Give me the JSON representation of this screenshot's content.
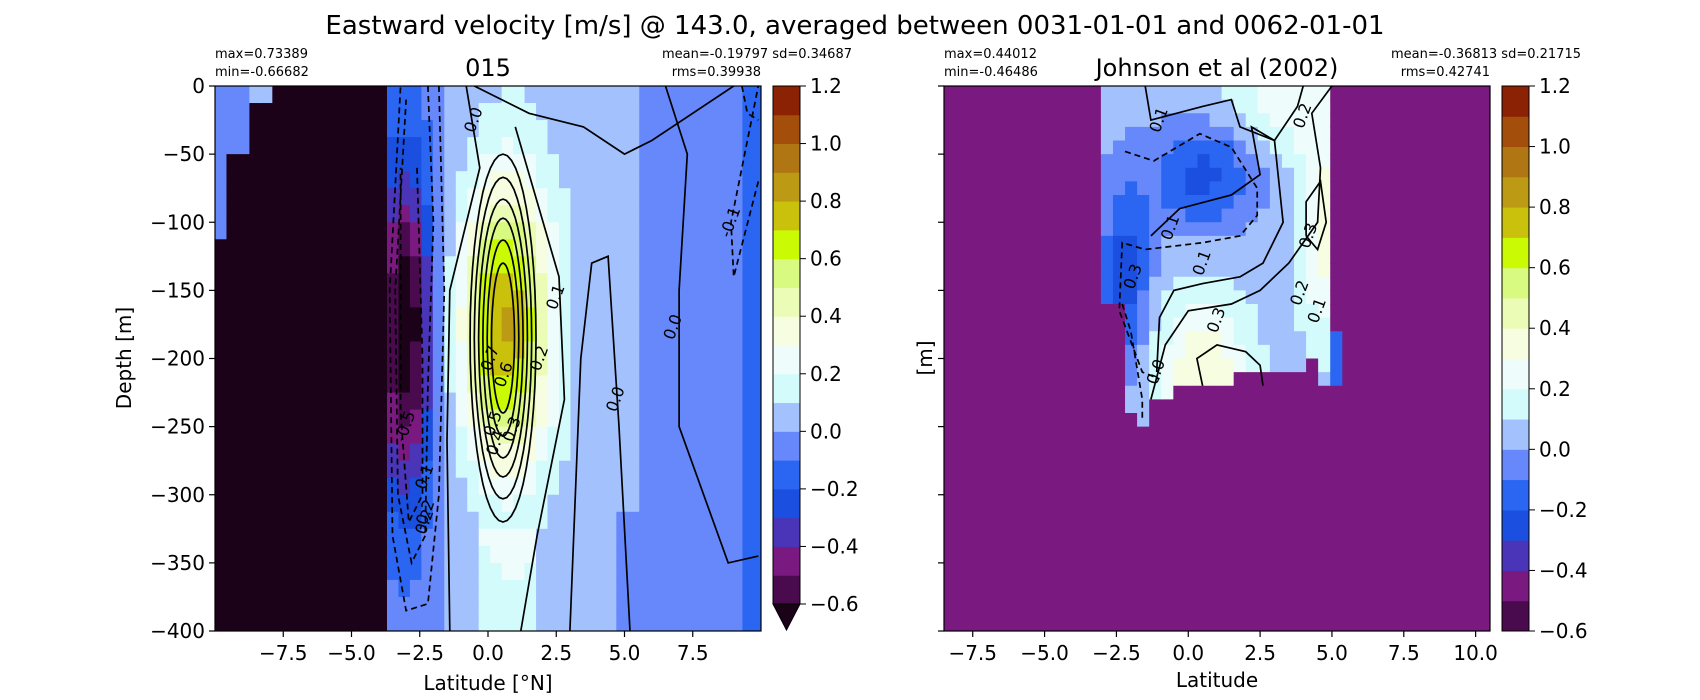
{
  "figure": {
    "suptitle": "Eastward velocity [m/s] @ 143.0, averaged between 0031-01-01 and 0062-01-01"
  },
  "colorbar": {
    "ticks": [
      "1.2",
      "1.0",
      "0.8",
      "0.6",
      "0.4",
      "0.2",
      "0.0",
      "−0.2",
      "−0.4",
      "−0.6"
    ],
    "levels": [
      -0.6,
      -0.5,
      -0.4,
      -0.3,
      -0.2,
      -0.1,
      0.0,
      0.1,
      0.2,
      0.3,
      0.4,
      0.5,
      0.6,
      0.7,
      0.8,
      0.9,
      1.0,
      1.1,
      1.2
    ],
    "colors": [
      "#4a0a4e",
      "#7a1a80",
      "#4a35b8",
      "#1a4fe0",
      "#2a66f2",
      "#6688fb",
      "#a3c2fd",
      "#d3fbfb",
      "#eefdfb",
      "#f6fde0",
      "#eafcb6",
      "#d9fa80",
      "#cbfb04",
      "#c9c10c",
      "#bc9a14",
      "#b07614",
      "#a44e0c",
      "#8c2204",
      "#6c0404"
    ],
    "under_color": "#1c0219"
  },
  "chart_data": [
    {
      "type": "heatmap",
      "title": "015",
      "xlabel": "Latitude [°N]",
      "ylabel": "Depth [m]",
      "xlim": [
        -10,
        10
      ],
      "ylim": [
        -400,
        0
      ],
      "xticks": [
        "−7.5",
        "−5.0",
        "−2.5",
        "0.0",
        "2.5",
        "5.0",
        "7.5"
      ],
      "xtick_values": [
        -7.5,
        -5.0,
        -2.5,
        0.0,
        2.5,
        5.0,
        7.5
      ],
      "yticks": [
        "0",
        "−50",
        "−100",
        "−150",
        "−200",
        "−250",
        "−300",
        "−350",
        "−400"
      ],
      "ytick_values": [
        0,
        -50,
        -100,
        -150,
        -200,
        -250,
        -300,
        -350,
        -400
      ],
      "stats_left": [
        "max=0.73389",
        "min=-0.66682"
      ],
      "stats_right": [
        "mean=-0.19797 sd=0.34687",
        "rms=0.39938"
      ],
      "contour_labels": [
        "0.0",
        "0.1",
        "0.2",
        "0.3",
        "0.4",
        "0.5",
        "0.6",
        "0.7",
        "-0.1",
        "0.0",
        "0.0",
        "0.1",
        "0.2",
        "-0.5",
        "-0.2"
      ],
      "contour_label_anchor": [
        [
          -0.5,
          -25
        ],
        [
          2.5,
          -155
        ],
        [
          1.9,
          -200
        ],
        [
          0.9,
          -252
        ],
        [
          0.3,
          -262
        ],
        [
          0.2,
          -248
        ],
        [
          0.6,
          -212
        ],
        [
          0.1,
          -200
        ],
        [
          8.9,
          -100
        ],
        [
          6.8,
          -177
        ],
        [
          4.7,
          -230
        ],
        [
          -2.3,
          -287
        ],
        [
          -2.3,
          -320
        ],
        [
          -3.0,
          -250
        ],
        [
          -2.3,
          -315
        ]
      ]
    },
    {
      "type": "heatmap",
      "title": "Johnson et al (2002)",
      "xlabel": "Latitude",
      "ylabel": "[m]",
      "xlim": [
        -8.5,
        10.5
      ],
      "ylim": [
        -400,
        0
      ],
      "xticks": [
        "−7.5",
        "−5.0",
        "−2.5",
        "0.0",
        "2.5",
        "5.0",
        "7.5",
        "10.0"
      ],
      "xtick_values": [
        -7.5,
        -5.0,
        -2.5,
        0.0,
        2.5,
        5.0,
        7.5,
        10.0
      ],
      "ytick_values": [
        0,
        -50,
        -100,
        -150,
        -200,
        -250,
        -300,
        -350,
        -400
      ],
      "stats_left": [
        "max=0.44012",
        "min=-0.46486"
      ],
      "stats_right": [
        "mean=-0.36813 sd=0.21715",
        "rms=0.42741"
      ],
      "contour_labels": [
        "0.1",
        "0.2",
        "0.1",
        "0.1",
        "0.3",
        "0.3",
        "0.2",
        "0.1",
        "0.3",
        "0.0"
      ],
      "contour_label_anchor": [
        [
          -1.0,
          -25
        ],
        [
          4.0,
          -22
        ],
        [
          -0.6,
          -104
        ],
        [
          0.5,
          -130
        ],
        [
          4.2,
          -110
        ],
        [
          -1.9,
          -140
        ],
        [
          3.9,
          -152
        ],
        [
          4.5,
          -165
        ],
        [
          1.0,
          -172
        ],
        [
          -1.1,
          -210
        ]
      ]
    }
  ]
}
